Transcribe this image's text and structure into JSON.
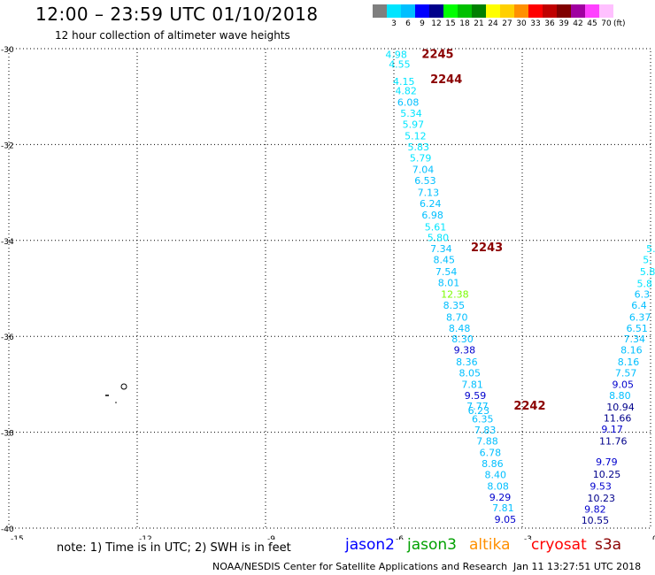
{
  "header": {
    "title": "12:00 – 23:59 UTC 01/10/2018",
    "subtitle": "12 hour collection of altimeter wave heights"
  },
  "legend": {
    "unit": "(ft)",
    "items": [
      {
        "label": "",
        "color": "#7f7f7f"
      },
      {
        "label": "3",
        "color": "#00e5ff"
      },
      {
        "label": "6",
        "color": "#00bfff"
      },
      {
        "label": "9",
        "color": "#0000ff"
      },
      {
        "label": "12",
        "color": "#00008b"
      },
      {
        "label": "15",
        "color": "#00ff00"
      },
      {
        "label": "18",
        "color": "#00c000"
      },
      {
        "label": "21",
        "color": "#008000"
      },
      {
        "label": "24",
        "color": "#ffff00"
      },
      {
        "label": "27",
        "color": "#ffd000"
      },
      {
        "label": "30",
        "color": "#ff9000"
      },
      {
        "label": "33",
        "color": "#ff0000"
      },
      {
        "label": "36",
        "color": "#c00000"
      },
      {
        "label": "39",
        "color": "#800000"
      },
      {
        "label": "42",
        "color": "#a000a0"
      },
      {
        "label": "45",
        "color": "#ff40ff"
      },
      {
        "label": "70",
        "color": "#ffc0ff"
      }
    ]
  },
  "chart_data": {
    "type": "scatter",
    "xlim": [
      -15,
      0
    ],
    "ylim": [
      -40,
      -30
    ],
    "xticks": [
      "-15",
      "-12",
      "-9",
      "-6",
      "-3",
      "0"
    ],
    "yticks": [
      "-30",
      "-32",
      "-34",
      "-36",
      "-38",
      "-40"
    ],
    "grid": true,
    "time_labels": [
      {
        "label": "2245",
        "x": -5.35,
        "y": -30.12,
        "color": "#8b0000"
      },
      {
        "label": "2244",
        "x": -5.15,
        "y": -30.65,
        "color": "#8b0000"
      },
      {
        "label": "2243",
        "x": -4.2,
        "y": -34.15,
        "color": "#8b0000"
      },
      {
        "label": "2242",
        "x": -3.2,
        "y": -37.45,
        "color": "#8b0000"
      }
    ],
    "series": [
      {
        "points": [
          {
            "x": -6.2,
            "y": -30.12,
            "v": "4.98",
            "color": "#00e5ff"
          },
          {
            "x": -6.12,
            "y": -30.32,
            "v": "4.55",
            "color": "#00e5ff"
          },
          {
            "x": -6.02,
            "y": -30.68,
            "v": "4.15",
            "color": "#00e5ff"
          },
          {
            "x": -5.97,
            "y": -30.88,
            "v": "4.82",
            "color": "#00e5ff"
          },
          {
            "x": -5.92,
            "y": -31.12,
            "v": "6.08",
            "color": "#00bfff"
          },
          {
            "x": -5.85,
            "y": -31.35,
            "v": "5.34",
            "color": "#00e5ff"
          },
          {
            "x": -5.8,
            "y": -31.58,
            "v": "5.97",
            "color": "#00e5ff"
          },
          {
            "x": -5.75,
            "y": -31.82,
            "v": "5.12",
            "color": "#00e5ff"
          },
          {
            "x": -5.68,
            "y": -32.05,
            "v": "5.83",
            "color": "#00e5ff"
          },
          {
            "x": -5.63,
            "y": -32.28,
            "v": "5.79",
            "color": "#00e5ff"
          },
          {
            "x": -5.57,
            "y": -32.52,
            "v": "7.04",
            "color": "#00bfff"
          },
          {
            "x": -5.52,
            "y": -32.75,
            "v": "6.53",
            "color": "#00bfff"
          },
          {
            "x": -5.45,
            "y": -33.0,
            "v": "7.13",
            "color": "#00bfff"
          },
          {
            "x": -5.4,
            "y": -33.23,
            "v": "6.24",
            "color": "#00bfff"
          },
          {
            "x": -5.35,
            "y": -33.47,
            "v": "6.98",
            "color": "#00bfff"
          },
          {
            "x": -5.28,
            "y": -33.72,
            "v": "5.61",
            "color": "#00e5ff"
          },
          {
            "x": -5.22,
            "y": -33.94,
            "v": "5.80",
            "color": "#00e5ff"
          },
          {
            "x": -5.15,
            "y": -34.17,
            "v": "7.34",
            "color": "#00bfff"
          },
          {
            "x": -5.08,
            "y": -34.4,
            "v": "8.45",
            "color": "#00bfff"
          },
          {
            "x": -5.03,
            "y": -34.65,
            "v": "7.54",
            "color": "#00bfff"
          },
          {
            "x": -4.97,
            "y": -34.88,
            "v": "8.01",
            "color": "#00bfff"
          },
          {
            "x": -4.9,
            "y": -35.12,
            "v": "12.38",
            "color": "#7cfc00"
          },
          {
            "x": -4.85,
            "y": -35.35,
            "v": "8.35",
            "color": "#00bfff"
          },
          {
            "x": -4.78,
            "y": -35.6,
            "v": "8.70",
            "color": "#00bfff"
          },
          {
            "x": -4.72,
            "y": -35.83,
            "v": "8.48",
            "color": "#00bfff"
          },
          {
            "x": -4.65,
            "y": -36.05,
            "v": "8.30",
            "color": "#00bfff"
          },
          {
            "x": -4.6,
            "y": -36.28,
            "v": "9.38",
            "color": "#0000cd"
          },
          {
            "x": -4.55,
            "y": -36.53,
            "v": "8.36",
            "color": "#00bfff"
          },
          {
            "x": -4.48,
            "y": -36.76,
            "v": "8.05",
            "color": "#00bfff"
          },
          {
            "x": -4.42,
            "y": -37.0,
            "v": "7.81",
            "color": "#00bfff"
          },
          {
            "x": -4.35,
            "y": -37.23,
            "v": "9.59",
            "color": "#0000cd"
          },
          {
            "x": -4.3,
            "y": -37.45,
            "v": "7.77",
            "color": "#00bfff"
          },
          {
            "x": -4.27,
            "y": -37.55,
            "v": "6.23",
            "color": "#00bfff"
          },
          {
            "x": -4.18,
            "y": -37.72,
            "v": "6.35",
            "color": "#00bfff"
          },
          {
            "x": -4.12,
            "y": -37.95,
            "v": "7.83",
            "color": "#00bfff"
          },
          {
            "x": -4.07,
            "y": -38.18,
            "v": "7.88",
            "color": "#00bfff"
          },
          {
            "x": -4.0,
            "y": -38.42,
            "v": "6.78",
            "color": "#00bfff"
          },
          {
            "x": -3.95,
            "y": -38.65,
            "v": "8.86",
            "color": "#00bfff"
          },
          {
            "x": -3.88,
            "y": -38.88,
            "v": "8.40",
            "color": "#00bfff"
          },
          {
            "x": -3.82,
            "y": -39.12,
            "v": "8.08",
            "color": "#00bfff"
          },
          {
            "x": -3.77,
            "y": -39.35,
            "v": "9.29",
            "color": "#0000cd"
          },
          {
            "x": -3.7,
            "y": -39.58,
            "v": "7.81",
            "color": "#00bfff"
          },
          {
            "x": -3.65,
            "y": -39.82,
            "v": "9.05",
            "color": "#0000cd"
          }
        ]
      },
      {
        "points": [
          {
            "x": -0.1,
            "y": -34.17,
            "v": "5.",
            "color": "#00e5ff"
          },
          {
            "x": -0.18,
            "y": -34.4,
            "v": "5.",
            "color": "#00e5ff"
          },
          {
            "x": -0.25,
            "y": -34.65,
            "v": "5.8",
            "color": "#00e5ff"
          },
          {
            "x": -0.32,
            "y": -34.9,
            "v": "5.8",
            "color": "#00e5ff"
          },
          {
            "x": -0.38,
            "y": -35.12,
            "v": "6.3",
            "color": "#00bfff"
          },
          {
            "x": -0.45,
            "y": -35.35,
            "v": "6.4",
            "color": "#00bfff"
          },
          {
            "x": -0.5,
            "y": -35.6,
            "v": "6.37",
            "color": "#00bfff"
          },
          {
            "x": -0.57,
            "y": -35.83,
            "v": "6.51",
            "color": "#00bfff"
          },
          {
            "x": -0.63,
            "y": -36.05,
            "v": "7.34",
            "color": "#00bfff"
          },
          {
            "x": -0.7,
            "y": -36.28,
            "v": "8.16",
            "color": "#00bfff"
          },
          {
            "x": -0.77,
            "y": -36.53,
            "v": "8.16",
            "color": "#00bfff"
          },
          {
            "x": -0.83,
            "y": -36.76,
            "v": "7.57",
            "color": "#00bfff"
          },
          {
            "x": -0.9,
            "y": -37.0,
            "v": "9.05",
            "color": "#0000cd"
          },
          {
            "x": -0.97,
            "y": -37.23,
            "v": "8.80",
            "color": "#00bfff"
          },
          {
            "x": -1.03,
            "y": -37.47,
            "v": "10.94",
            "color": "#00008b"
          },
          {
            "x": -1.1,
            "y": -37.7,
            "v": "11.66",
            "color": "#00008b"
          },
          {
            "x": -1.15,
            "y": -37.93,
            "v": "9.17",
            "color": "#0000cd"
          },
          {
            "x": -1.2,
            "y": -38.18,
            "v": "11.76",
            "color": "#00008b"
          },
          {
            "x": -1.28,
            "y": -38.62,
            "v": "9.79",
            "color": "#0000cd"
          },
          {
            "x": -1.35,
            "y": -38.87,
            "v": "10.25",
            "color": "#00008b"
          },
          {
            "x": -1.42,
            "y": -39.12,
            "v": "9.53",
            "color": "#0000cd"
          },
          {
            "x": -1.48,
            "y": -39.37,
            "v": "10.23",
            "color": "#00008b"
          },
          {
            "x": -1.55,
            "y": -39.6,
            "v": "9.82",
            "color": "#0000cd"
          },
          {
            "x": -1.62,
            "y": -39.83,
            "v": "10.55",
            "color": "#00008b"
          }
        ]
      }
    ]
  },
  "footer": {
    "note": "note:  1) Time is in UTC;  2) SWH is in feet",
    "satellites": [
      {
        "name": "jason2",
        "color": "#0000ff"
      },
      {
        "name": "jason3",
        "color": "#00a000"
      },
      {
        "name": "altika",
        "color": "#ff9000"
      },
      {
        "name": "cryosat",
        "color": "#ff0000"
      },
      {
        "name": "s3a",
        "color": "#8b0000"
      }
    ],
    "credit": "NOAA/NESDIS Center for Satellite Applications and Research",
    "timestamp": "Jan 11 13:27:51 UTC 2018"
  }
}
